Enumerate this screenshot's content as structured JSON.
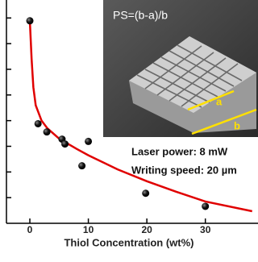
{
  "chart_data": {
    "type": "scatter",
    "x_label": "Thiol Concentration (wt%)",
    "xlim": [
      -4,
      39
    ],
    "xticks": [
      0,
      10,
      20,
      30
    ],
    "ylim": [
      0,
      8.7
    ],
    "yticks": [
      1,
      2,
      3,
      4,
      5,
      6,
      7,
      8
    ],
    "annotations": {
      "formula": "PS=(b-a)/b",
      "a": "a",
      "b": "b",
      "laser": "Laser power: 8 mW",
      "speed": "Writing speed: 20 µm"
    },
    "series": [
      {
        "color": "#111111",
        "x": [
          0,
          1.4,
          2.9,
          5.5,
          6.0,
          8.9,
          10.0,
          19.8,
          30.0
        ],
        "values": [
          7.89,
          3.88,
          3.56,
          3.28,
          3.09,
          2.24,
          3.19,
          1.17,
          0.66
        ]
      },
      {
        "type": "line",
        "color": "#e00000",
        "x": [
          0,
          0.3,
          0.6,
          1,
          2,
          3,
          5,
          8,
          10,
          15,
          20,
          25,
          30,
          38
        ],
        "values": [
          7.89,
          6.4,
          5.3,
          4.6,
          4.0,
          3.7,
          3.3,
          2.9,
          2.65,
          2.1,
          1.64,
          1.23,
          0.85,
          0.47
        ]
      }
    ]
  }
}
